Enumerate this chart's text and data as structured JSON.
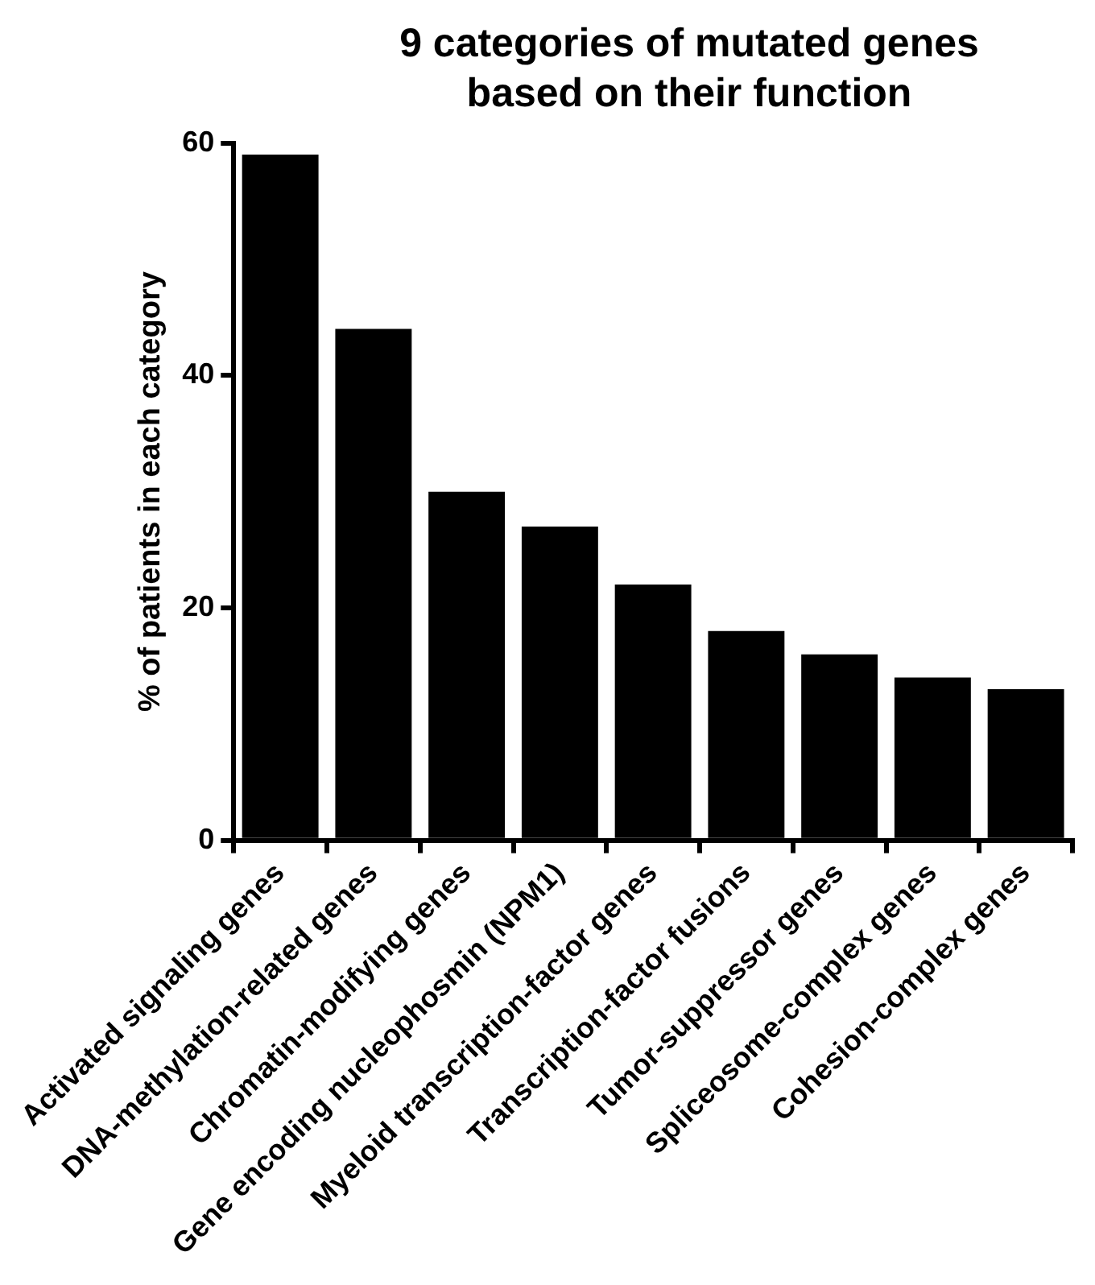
{
  "chart_data": {
    "type": "bar",
    "title": "9 categories of mutated genes based on their function",
    "ylabel": "% of patients in each category",
    "categories": [
      "Activated signaling genes",
      "DNA-methylation-related genes",
      "Chromatin-modifying genes",
      "Gene encoding nucleophosmin (NPM1)",
      "Myeloid transcription-factor genes",
      "Transcription-factor fusions",
      "Tumor-suppressor genes",
      "Spliceosome-complex genes",
      "Cohesion-complex genes"
    ],
    "values": [
      59,
      44,
      30,
      27,
      22,
      18,
      16,
      14,
      13
    ],
    "color": "#000000",
    "ylim": [
      0,
      60
    ],
    "yticks": [
      0,
      20,
      40,
      60
    ],
    "grid": false,
    "legend": false
  }
}
